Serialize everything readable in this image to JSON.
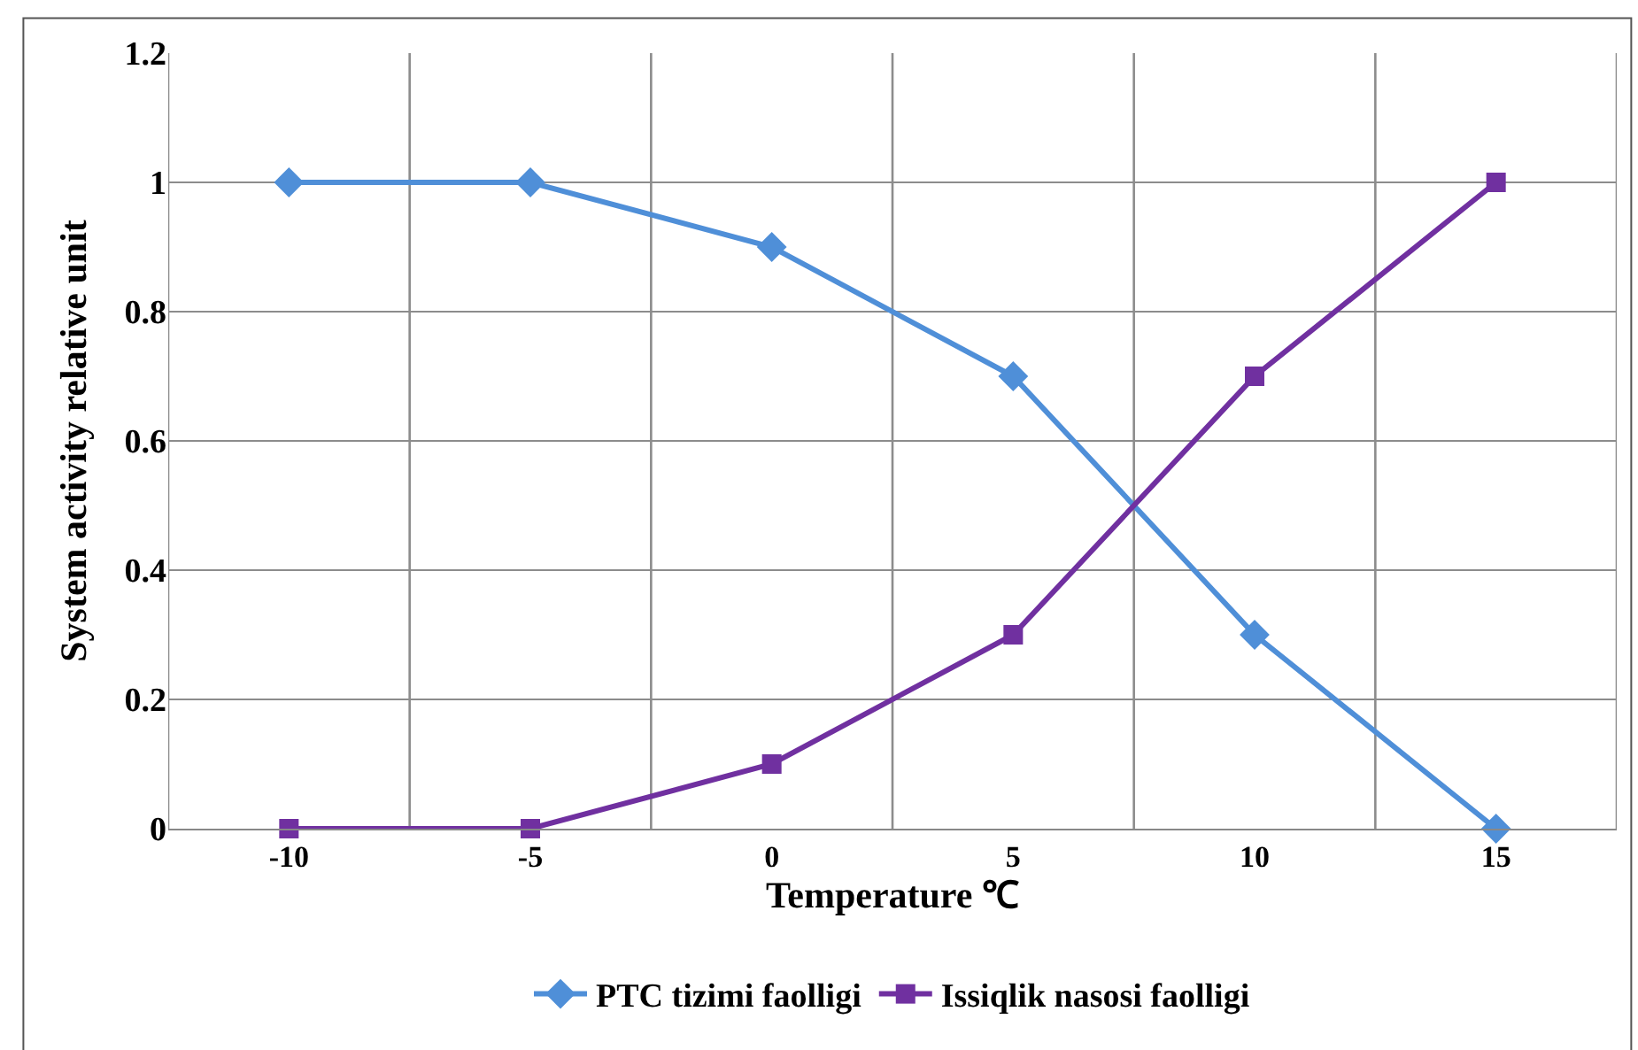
{
  "chart_data": {
    "type": "line",
    "xlabel": "Temperature ℃",
    "ylabel": "System activity relative unit",
    "categories": [
      "-10",
      "-5",
      "0",
      "5",
      "10",
      "15"
    ],
    "series": [
      {
        "name": "PTC tizimi faolligi",
        "color": "#4f8fd8",
        "marker": "diamond",
        "values": [
          1,
          1,
          0.9,
          0.7,
          0.3,
          0
        ]
      },
      {
        "name": "Issiqlik nasosi faolligi",
        "color": "#7030a0",
        "marker": "square",
        "values": [
          0,
          0,
          0.1,
          0.3,
          0.7,
          1
        ]
      }
    ],
    "ylim": [
      0,
      1.2
    ],
    "yticks": [
      0,
      0.2,
      0.4,
      0.6,
      0.8,
      1,
      1.2
    ],
    "grid": true,
    "legend": "bottom",
    "line_style": "solid"
  }
}
